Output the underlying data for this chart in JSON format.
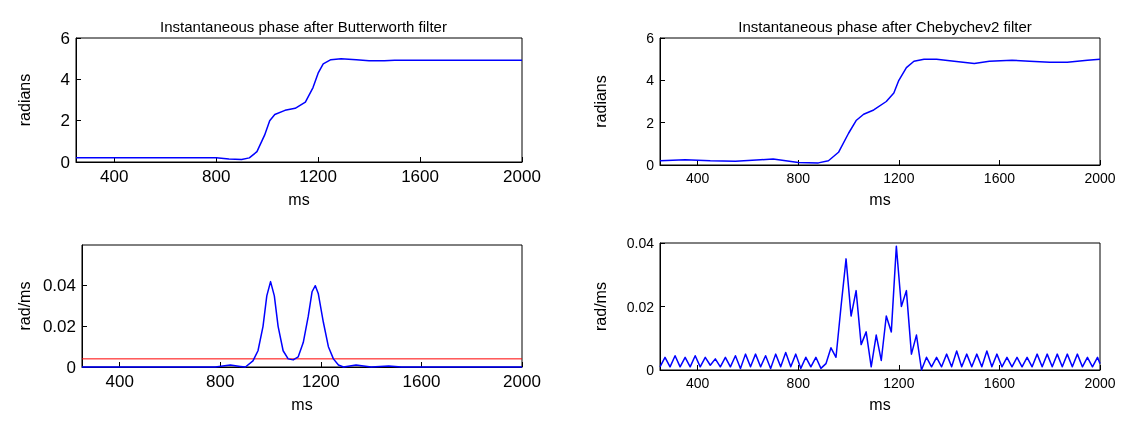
{
  "chart_data": [
    {
      "type": "line",
      "title": "Instantaneous phase after Butterworth filter",
      "xlabel": "ms",
      "ylabel": "radians",
      "xlim": [
        250,
        2000
      ],
      "xticks": [
        400,
        800,
        1200,
        1600,
        2000
      ],
      "ylim": [
        0,
        6
      ],
      "yticks": [
        0,
        2,
        4,
        6
      ],
      "grid": false,
      "marker": "none",
      "series": [
        {
          "color": "#0000ff",
          "x": [
            250,
            800,
            850,
            900,
            930,
            960,
            990,
            1010,
            1030,
            1070,
            1110,
            1150,
            1180,
            1200,
            1220,
            1250,
            1290,
            1350,
            1400,
            1460,
            1500,
            2000
          ],
          "values": [
            0.2,
            0.2,
            0.15,
            0.12,
            0.2,
            0.5,
            1.3,
            2.0,
            2.3,
            2.5,
            2.6,
            2.9,
            3.6,
            4.3,
            4.75,
            4.95,
            5.0,
            4.95,
            4.9,
            4.9,
            4.92,
            4.92
          ]
        }
      ]
    },
    {
      "type": "line",
      "title": "Instantaneous phase after Chebychev2 filter",
      "xlabel": "ms",
      "ylabel": "radians",
      "xlim": [
        250,
        2000
      ],
      "xticks": [
        400,
        800,
        1200,
        1600,
        2000
      ],
      "ylim": [
        0,
        6
      ],
      "yticks": [
        0,
        2,
        4,
        6
      ],
      "grid": false,
      "marker": "none",
      "series": [
        {
          "color": "#0000ff",
          "x": [
            250,
            350,
            450,
            550,
            650,
            700,
            800,
            880,
            920,
            960,
            1000,
            1030,
            1060,
            1100,
            1150,
            1180,
            1200,
            1230,
            1260,
            1300,
            1350,
            1420,
            1500,
            1560,
            1650,
            1720,
            1800,
            1870,
            1950,
            2000
          ],
          "values": [
            0.2,
            0.25,
            0.2,
            0.18,
            0.25,
            0.28,
            0.12,
            0.1,
            0.2,
            0.6,
            1.5,
            2.1,
            2.4,
            2.6,
            3.0,
            3.4,
            4.0,
            4.6,
            4.9,
            5.0,
            5.0,
            4.9,
            4.8,
            4.9,
            4.95,
            4.9,
            4.85,
            4.85,
            4.95,
            5.0
          ]
        }
      ]
    },
    {
      "type": "line",
      "xlabel": "ms",
      "ylabel": "rad/ms",
      "xlim": [
        250,
        2000
      ],
      "xticks": [
        400,
        800,
        1200,
        1600,
        2000
      ],
      "ylim": [
        0,
        0.06
      ],
      "yticks": [
        0,
        0.02,
        0.04
      ],
      "grid": false,
      "marker": "none",
      "ref_lines": [
        {
          "axis": "y",
          "value": 0.004,
          "color": "#ff0000"
        }
      ],
      "series": [
        {
          "color": "#0000ff",
          "x": [
            250,
            780,
            840,
            880,
            900,
            930,
            950,
            970,
            985,
            1000,
            1015,
            1030,
            1050,
            1070,
            1090,
            1110,
            1130,
            1150,
            1165,
            1178,
            1190,
            1210,
            1230,
            1250,
            1270,
            1290,
            1340,
            1400,
            1470,
            1520,
            2000
          ],
          "values": [
            0,
            0,
            0.001,
            0.0003,
            0,
            0.003,
            0.008,
            0.02,
            0.035,
            0.042,
            0.035,
            0.02,
            0.008,
            0.004,
            0.0035,
            0.005,
            0.012,
            0.025,
            0.037,
            0.04,
            0.036,
            0.022,
            0.01,
            0.004,
            0.001,
            0,
            0.001,
            0,
            0.0005,
            0,
            0
          ]
        }
      ]
    },
    {
      "type": "line",
      "xlabel": "ms",
      "ylabel": "rad/ms",
      "xlim": [
        250,
        2000
      ],
      "xticks": [
        400,
        800,
        1200,
        1600,
        2000
      ],
      "ylim": [
        0,
        0.04
      ],
      "yticks": [
        0,
        0.02,
        0.04
      ],
      "grid": false,
      "marker": "none",
      "series": [
        {
          "color": "#0000ff",
          "x": [
            250,
            270,
            290,
            310,
            330,
            350,
            370,
            390,
            410,
            430,
            450,
            470,
            490,
            510,
            530,
            550,
            570,
            590,
            610,
            630,
            650,
            670,
            690,
            710,
            730,
            750,
            770,
            790,
            810,
            830,
            850,
            870,
            890,
            910,
            930,
            950,
            970,
            990,
            1010,
            1030,
            1050,
            1070,
            1090,
            1110,
            1130,
            1150,
            1170,
            1190,
            1210,
            1230,
            1250,
            1270,
            1290,
            1310,
            1330,
            1350,
            1370,
            1390,
            1410,
            1430,
            1450,
            1470,
            1490,
            1510,
            1530,
            1550,
            1570,
            1590,
            1610,
            1630,
            1650,
            1670,
            1690,
            1710,
            1730,
            1750,
            1770,
            1790,
            1810,
            1830,
            1850,
            1870,
            1890,
            1910,
            1930,
            1950,
            1970,
            1990,
            2000
          ],
          "values": [
            0.001,
            0.004,
            0.001,
            0.0045,
            0.001,
            0.004,
            0.001,
            0.0045,
            0.001,
            0.004,
            0.0015,
            0.0035,
            0.001,
            0.004,
            0.001,
            0.0045,
            0.0005,
            0.005,
            0.001,
            0.005,
            0.001,
            0.0045,
            0.0005,
            0.005,
            0.001,
            0.0055,
            0.001,
            0.005,
            0.0005,
            0.004,
            0.001,
            0.004,
            0.0005,
            0.002,
            0.007,
            0.004,
            0.02,
            0.035,
            0.017,
            0.025,
            0.008,
            0.012,
            0.001,
            0.011,
            0.003,
            0.017,
            0.012,
            0.039,
            0.02,
            0.025,
            0.005,
            0.011,
            0,
            0.004,
            0.001,
            0.004,
            0.001,
            0.005,
            0.001,
            0.006,
            0.001,
            0.005,
            0.001,
            0.005,
            0.001,
            0.006,
            0.001,
            0.005,
            0.001,
            0.004,
            0.001,
            0.004,
            0.001,
            0.004,
            0.001,
            0.005,
            0.001,
            0.005,
            0.001,
            0.005,
            0.001,
            0.005,
            0.001,
            0.005,
            0.001,
            0.004,
            0.001,
            0.004,
            0.002
          ]
        }
      ]
    }
  ]
}
